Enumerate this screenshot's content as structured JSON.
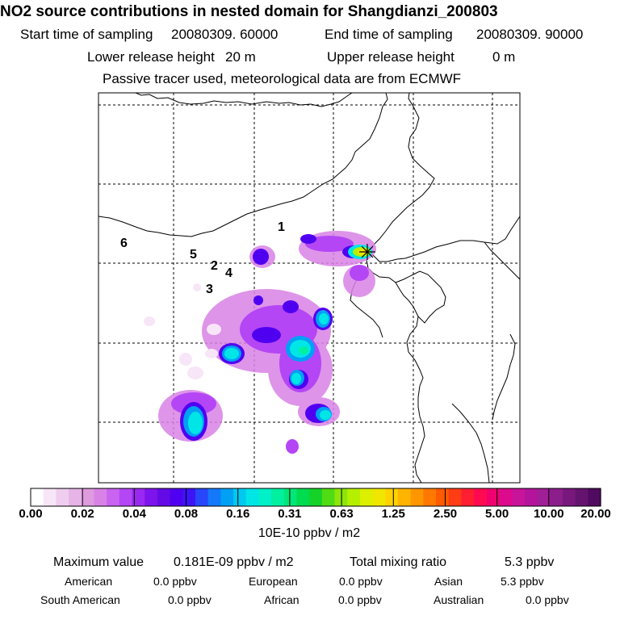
{
  "title": "NO2 source contributions in nested domain for Shangdianzi_200803",
  "header": {
    "start_label": "Start time of sampling",
    "start_value": "20080309. 60000",
    "end_label": "End time of sampling",
    "end_value": "20080309. 90000",
    "lower_label": "Lower release height",
    "lower_value": "20 m",
    "upper_label": "Upper release height",
    "upper_value": "0 m",
    "note": "Passive tracer used, meteorological data are from ECMWF"
  },
  "map": {
    "region_labels": [
      "1",
      "2",
      "3",
      "4",
      "5",
      "6"
    ],
    "receptor_marker": "star-x-icon"
  },
  "colorbar": {
    "ticks": [
      "0.00",
      "0.02",
      "0.04",
      "0.08",
      "0.16",
      "0.31",
      "0.63",
      "1.25",
      "2.50",
      "5.00",
      "10.00",
      "20.00"
    ],
    "unit": "10E-10 ppbv / m2",
    "colors": [
      "#ffffff",
      "#f7e6f7",
      "#efcdef",
      "#e6b4e6",
      "#de9bde",
      "#d982e6",
      "#c864f0",
      "#b446f5",
      "#9b28f0",
      "#7d14eb",
      "#640ae6",
      "#5000f0",
      "#3c14f5",
      "#2846fa",
      "#1478fa",
      "#00a0f5",
      "#00c8f0",
      "#00e6e6",
      "#00f0c8",
      "#00f0a0",
      "#00e678",
      "#00dc50",
      "#14d228",
      "#50dc14",
      "#8ce60a",
      "#b4f000",
      "#dcf000",
      "#f0e600",
      "#ffd200",
      "#ffb400",
      "#ff9600",
      "#ff7800",
      "#ff5a00",
      "#ff3c14",
      "#ff1e32",
      "#ff0a50",
      "#f0006e",
      "#dc0a8c",
      "#c8149b",
      "#b4149b",
      "#a01e96",
      "#8c1e8c",
      "#78187d",
      "#64146e",
      "#500a5f"
    ]
  },
  "summary": {
    "max_label": "Maximum value",
    "max_value": "0.181E-09 ppbv / m2",
    "total_label": "Total mixing ratio",
    "total_value": "5.3 ppbv",
    "regions": [
      {
        "name": "American",
        "value": "0.0 ppbv"
      },
      {
        "name": "European",
        "value": "0.0 ppbv"
      },
      {
        "name": "Asian",
        "value": "5.3 ppbv"
      },
      {
        "name": "South American",
        "value": "0.0 ppbv"
      },
      {
        "name": "African",
        "value": "0.0 ppbv"
      },
      {
        "name": "Australian",
        "value": "0.0 ppbv"
      }
    ]
  }
}
